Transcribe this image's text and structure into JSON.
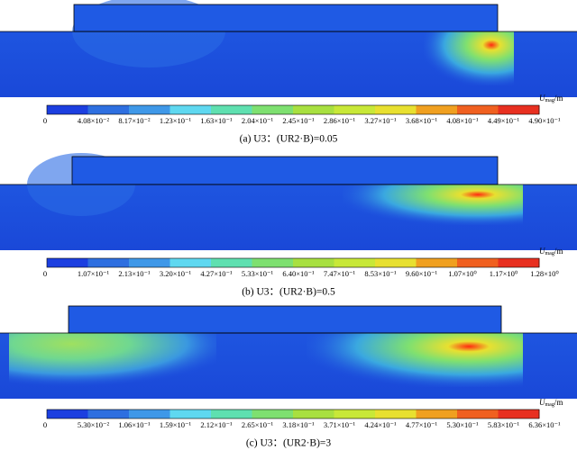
{
  "panels": [
    {
      "caption": "(a) U3：(UR2·B)=0.05",
      "legend": {
        "symbol": "U",
        "subscript": "mag",
        "unit": "/m",
        "ticks": [
          "0",
          "4.08×10⁻²",
          "8.17×10⁻²",
          "1.23×10⁻¹",
          "1.63×10⁻¹",
          "2.04×10⁻¹",
          "2.45×10⁻¹",
          "2.86×10⁻¹",
          "3.27×10⁻¹",
          "3.68×10⁻¹",
          "4.08×10⁻¹",
          "4.49×10⁻¹",
          "4.90×10⁻¹"
        ]
      }
    },
    {
      "caption": "(b) U3：(UR2·B)=0.5",
      "legend": {
        "symbol": "U",
        "subscript": "mag",
        "unit": "/m",
        "ticks": [
          "0",
          "1.07×10⁻¹",
          "2.13×10⁻¹",
          "3.20×10⁻¹",
          "4.27×10⁻¹",
          "5.33×10⁻¹",
          "6.40×10⁻¹",
          "7.47×10⁻¹",
          "8.53×10⁻¹",
          "9.60×10⁻¹",
          "1.07×10⁰",
          "1.17×10⁰",
          "1.28×10⁰"
        ]
      }
    },
    {
      "caption": "(c) U3：(UR2·B)=3",
      "legend": {
        "symbol": "U",
        "subscript": "mag",
        "unit": "/m",
        "ticks": [
          "0",
          "5.30×10⁻²",
          "1.06×10⁻¹",
          "1.59×10⁻¹",
          "2.12×10⁻¹",
          "2.65×10⁻¹",
          "3.18×10⁻¹",
          "3.71×10⁻¹",
          "4.24×10⁻¹",
          "4.77×10⁻¹",
          "5.30×10⁻¹",
          "5.83×10⁻¹",
          "6.36×10⁻¹"
        ]
      }
    }
  ]
}
